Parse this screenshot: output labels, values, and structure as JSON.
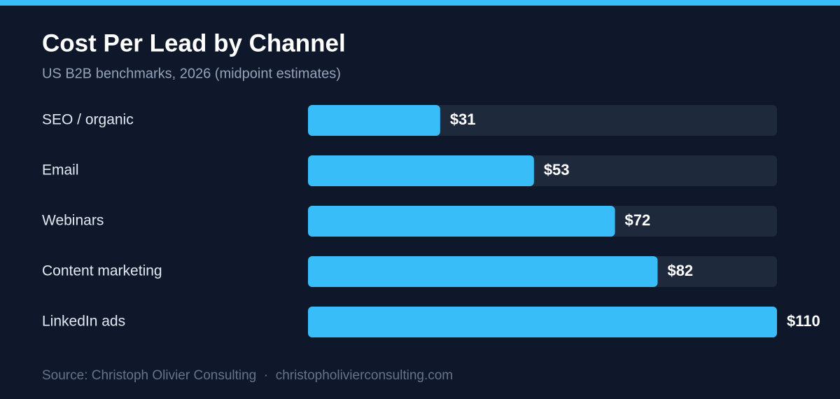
{
  "chart_data": {
    "type": "bar",
    "orientation": "horizontal",
    "title": "Cost Per Lead by Channel",
    "subtitle": "US B2B benchmarks, 2026 (midpoint estimates)",
    "categories": [
      "SEO / organic",
      "Email",
      "Webinars",
      "Content marketing",
      "LinkedIn ads"
    ],
    "values": [
      31,
      53,
      72,
      82,
      110
    ],
    "value_labels": [
      "$31",
      "$53",
      "$72",
      "$82",
      "$110"
    ],
    "color": "#38bdf8",
    "xlim": [
      0,
      110
    ],
    "source": "Source: Christoph Olivier Consulting  ·  christopholivierconsulting.com"
  }
}
